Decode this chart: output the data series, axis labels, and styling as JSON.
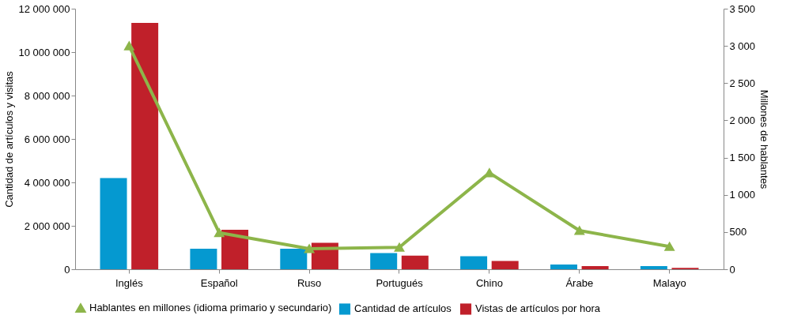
{
  "chart_data": {
    "type": "bar",
    "categories": [
      "Inglés",
      "Español",
      "Ruso",
      "Portugués",
      "Chino",
      "Árabe",
      "Malayo"
    ],
    "ylabel": "Cantidad de artículos y visitas",
    "y2label": "Millones de hablantes",
    "ylim": [
      0,
      12000000
    ],
    "yticks": [
      0,
      {
        "value": 2000000,
        "label": "2 000 000"
      },
      {
        "value": 4000000,
        "label": "4 000 000"
      },
      {
        "value": 6000000,
        "label": "6 000 000"
      },
      {
        "value": 8000000,
        "label": "8 000 000"
      },
      {
        "value": 10000000,
        "label": "10 000 000"
      },
      {
        "value": 12000000,
        "label": "12 000 000"
      }
    ],
    "y2lim": [
      0,
      3500
    ],
    "y2ticks": [
      0,
      500,
      {
        "value": 1000,
        "label": "1 000"
      },
      {
        "value": 1500,
        "label": "1 500"
      },
      {
        "value": 2000,
        "label": "2 000"
      },
      {
        "value": 2500,
        "label": "2 500"
      },
      {
        "value": 3000,
        "label": "3 000"
      },
      {
        "value": 3500,
        "label": "3 500"
      }
    ],
    "grid": false,
    "legend": "bottom",
    "series": [
      {
        "name": "Cantidad de artículos",
        "color": "#0599d0",
        "values": [
          4200000,
          950000,
          950000,
          750000,
          600000,
          220000,
          150000
        ]
      },
      {
        "name": "Vistas de artículos por hora",
        "color": "#c0202a",
        "values": [
          11350000,
          1820000,
          1220000,
          630000,
          380000,
          150000,
          60000
        ]
      },
      {
        "name": "Hablantes en millones (idioma primario y secundario)",
        "type": "line",
        "axis": "y2",
        "marker": "triangle",
        "color": "#8db54a",
        "values": [
          3000,
          490,
          275,
          295,
          1295,
          520,
          305
        ]
      }
    ]
  }
}
